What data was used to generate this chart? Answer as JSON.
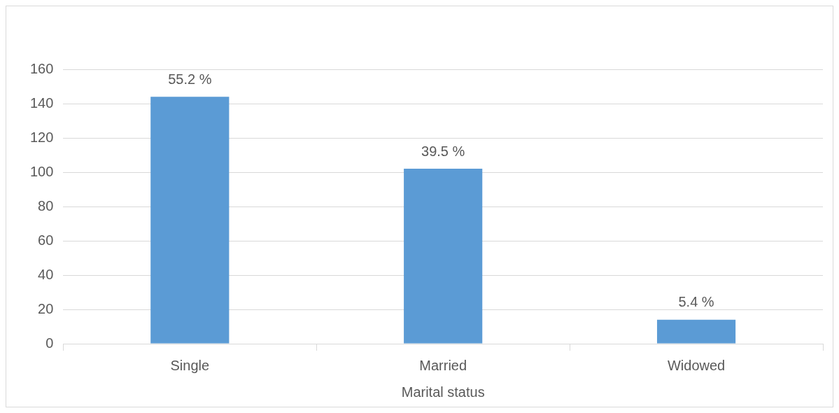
{
  "chart_data": {
    "type": "bar",
    "xlabel": "Marital status",
    "categories": [
      "Single",
      "Married",
      "Widowed"
    ],
    "values": [
      144,
      102,
      14
    ],
    "color": "#5b9bd5",
    "annotations": [
      {
        "text": "55.2 %",
        "x": "Single",
        "y": 144
      },
      {
        "text": "39.5 %",
        "x": "Married",
        "y": 102
      },
      {
        "text": "5.4 %",
        "x": "Widowed",
        "y": 14
      }
    ],
    "ylim": [
      0,
      160
    ],
    "yticks": [
      0,
      20,
      40,
      60,
      80,
      100,
      120,
      140,
      160
    ],
    "grid": "y",
    "legend": false
  }
}
